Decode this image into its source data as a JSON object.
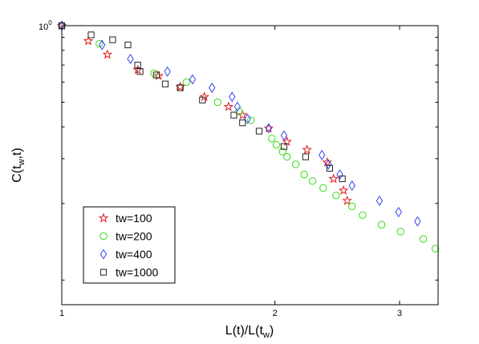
{
  "chart_data": {
    "type": "scatter",
    "title": "",
    "xlabel": {
      "main": "L(t)/L(t",
      "sub": "w",
      "tail": ")"
    },
    "ylabel": {
      "main": "C(t",
      "sub": "w",
      "tail": ",t)"
    },
    "xscale": "log",
    "yscale": "log",
    "xlim": [
      1,
      3.4
    ],
    "ylim": [
      0.08,
      1.0
    ],
    "xticks": [
      1,
      2,
      3
    ],
    "xtick_labels": [
      "1",
      "2",
      "3"
    ],
    "ytick_label": {
      "base": "10",
      "exp": "0"
    },
    "grid": false,
    "legend_position": "lower-left",
    "series": [
      {
        "name": "tw=100",
        "marker": "star",
        "color": "#e41a1c",
        "x": [
          1.0,
          1.09,
          1.16,
          1.28,
          1.37,
          1.47,
          1.59,
          1.72,
          1.8,
          1.96,
          2.08,
          2.22,
          2.37,
          2.42,
          2.5,
          2.53
        ],
        "y": [
          1.0,
          0.87,
          0.77,
          0.67,
          0.635,
          0.575,
          0.525,
          0.48,
          0.445,
          0.395,
          0.35,
          0.325,
          0.29,
          0.25,
          0.225,
          0.205
        ]
      },
      {
        "name": "tw=200",
        "marker": "circle",
        "color": "#33dd11",
        "x": [
          1.0,
          1.13,
          1.35,
          1.5,
          1.66,
          1.78,
          1.85,
          1.98,
          2.01,
          2.05,
          2.08,
          2.14,
          2.2,
          2.26,
          2.34,
          2.44,
          2.57,
          2.66,
          2.83,
          3.01,
          3.24,
          3.37
        ],
        "y": [
          1.0,
          0.85,
          0.65,
          0.6,
          0.5,
          0.46,
          0.425,
          0.36,
          0.34,
          0.32,
          0.305,
          0.285,
          0.26,
          0.245,
          0.23,
          0.215,
          0.195,
          0.18,
          0.165,
          0.155,
          0.145,
          0.133
        ]
      },
      {
        "name": "tw=400",
        "marker": "diamond",
        "color": "#3344ee",
        "x": [
          1.0,
          1.14,
          1.25,
          1.41,
          1.53,
          1.63,
          1.74,
          1.77,
          1.83,
          1.96,
          2.06,
          2.33,
          2.38,
          2.47,
          2.57,
          2.81,
          2.99,
          3.18
        ],
        "y": [
          1.0,
          0.84,
          0.74,
          0.66,
          0.615,
          0.57,
          0.525,
          0.48,
          0.43,
          0.395,
          0.37,
          0.31,
          0.285,
          0.26,
          0.235,
          0.205,
          0.185,
          0.17
        ]
      },
      {
        "name": "tw=1000",
        "marker": "square",
        "color": "#222222",
        "x": [
          1.0,
          1.1,
          1.18,
          1.24,
          1.28,
          1.29,
          1.36,
          1.4,
          1.47,
          1.58,
          1.75,
          1.8,
          1.9,
          2.06,
          2.21,
          2.39,
          2.49
        ],
        "y": [
          1.0,
          0.92,
          0.88,
          0.84,
          0.7,
          0.66,
          0.64,
          0.59,
          0.57,
          0.51,
          0.445,
          0.415,
          0.385,
          0.335,
          0.305,
          0.275,
          0.25
        ]
      }
    ]
  }
}
